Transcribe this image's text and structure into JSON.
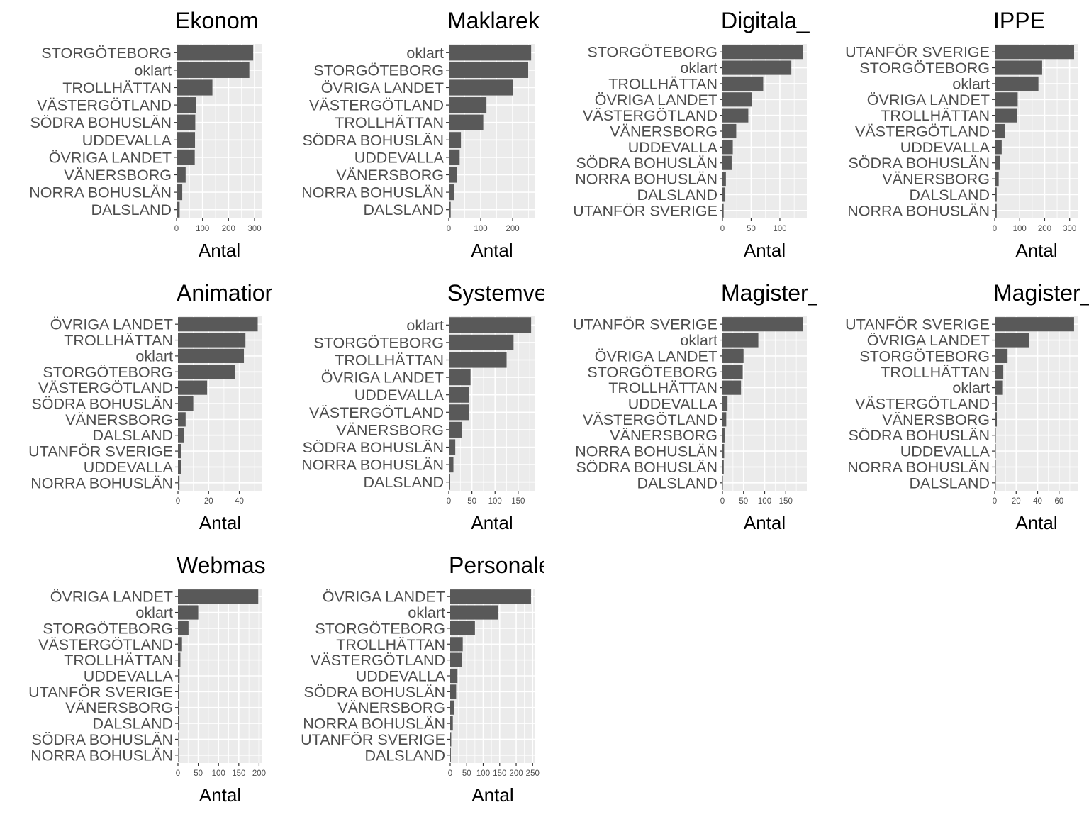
{
  "chart_data": [
    {
      "type": "bar",
      "title": "Ekonom",
      "xlabel": "Antal",
      "categories": [
        "STORGÖTEBORG",
        "oklart",
        "TROLLHÄTTAN",
        "VÄSTERGÖTLAND",
        "SÖDRA BOHUSLÄN",
        "UDDEVALLA",
        "ÖVRIGA LANDET",
        "VÄNERSBORG",
        "NORRA BOHUSLÄN",
        "DALSLAND"
      ],
      "values": [
        295,
        280,
        138,
        76,
        72,
        71,
        70,
        35,
        22,
        12
      ],
      "xlim": [
        0,
        330
      ],
      "ticks": [
        0,
        100,
        200,
        300
      ],
      "tick_labels": [
        "0",
        "100",
        "200",
        "300"
      ]
    },
    {
      "type": "bar",
      "title": "Maklarek",
      "xlabel": "Antal",
      "categories": [
        "oklart",
        "STORGÖTEBORG",
        "ÖVRIGA LANDET",
        "VÄSTERGÖTLAND",
        "TROLLHÄTTAN",
        "SÖDRA BOHUSLÄN",
        "UDDEVALLA",
        "VÄNERSBORG",
        "NORRA BOHUSLÄN",
        "DALSLAND"
      ],
      "values": [
        258,
        249,
        202,
        118,
        108,
        38,
        34,
        26,
        17,
        6
      ],
      "xlim": [
        0,
        271
      ],
      "ticks": [
        0,
        100,
        200
      ],
      "tick_labels": [
        "0",
        "100",
        "200"
      ]
    },
    {
      "type": "bar",
      "title": "Digitala_",
      "xlabel": "Antal",
      "categories": [
        "STORGÖTEBORG",
        "oklart",
        "TROLLHÄTTAN",
        "ÖVRIGA LANDET",
        "VÄSTERGÖTLAND",
        "VÄNERSBORG",
        "UDDEVALLA",
        "SÖDRA BOHUSLÄN",
        "NORRA BOHUSLÄN",
        "DALSLAND",
        "UTANFÖR SVERIGE"
      ],
      "values": [
        140,
        120,
        71,
        51,
        45,
        24,
        18,
        16,
        6,
        5,
        2
      ],
      "xlim": [
        0,
        147
      ],
      "ticks": [
        0,
        50,
        100
      ],
      "tick_labels": [
        "0",
        "50",
        "100"
      ]
    },
    {
      "type": "bar",
      "title": "IPPE",
      "xlabel": "Antal",
      "categories": [
        "UTANFÖR SVERIGE",
        "STORGÖTEBORG",
        "oklart",
        "ÖVRIGA LANDET",
        "TROLLHÄTTAN",
        "VÄSTERGÖTLAND",
        "UDDEVALLA",
        "SÖDRA BOHUSLÄN",
        "VÄNERSBORG",
        "DALSLAND",
        "NORRA BOHUSLÄN"
      ],
      "values": [
        318,
        190,
        175,
        92,
        90,
        42,
        28,
        22,
        16,
        8,
        8
      ],
      "xlim": [
        0,
        335
      ],
      "ticks": [
        0,
        100,
        200,
        300
      ],
      "tick_labels": [
        "0",
        "100",
        "200",
        "300"
      ]
    },
    {
      "type": "bar",
      "title": "Animation",
      "xlabel": "Antal",
      "categories": [
        "ÖVRIGA LANDET",
        "TROLLHÄTTAN",
        "oklart",
        "STORGÖTEBORG",
        "VÄSTERGÖTLAND",
        "SÖDRA BOHUSLÄN",
        "VÄNERSBORG",
        "DALSLAND",
        "UTANFÖR SVERIGE",
        "UDDEVALLA",
        "NORRA BOHUSLÄN"
      ],
      "values": [
        52,
        44,
        43,
        37,
        19,
        10,
        5,
        4,
        2,
        2,
        1
      ],
      "xlim": [
        0,
        55
      ],
      "ticks": [
        0,
        20,
        40
      ],
      "tick_labels": [
        "0",
        "20",
        "40"
      ]
    },
    {
      "type": "bar",
      "title": "Systemve",
      "xlabel": "Antal",
      "categories": [
        "oklart",
        "STORGÖTEBORG",
        "TROLLHÄTTAN",
        "ÖVRIGA LANDET",
        "UDDEVALLA",
        "VÄSTERGÖTLAND",
        "VÄNERSBORG",
        "SÖDRA BOHUSLÄN",
        "NORRA BOHUSLÄN",
        "DALSLAND"
      ],
      "values": [
        178,
        140,
        125,
        47,
        44,
        44,
        29,
        14,
        10,
        3
      ],
      "xlim": [
        0,
        187
      ],
      "ticks": [
        0,
        50,
        100,
        150
      ],
      "tick_labels": [
        "0",
        "50",
        "100",
        "150"
      ]
    },
    {
      "type": "bar",
      "title": "Magister_",
      "xlabel": "Antal",
      "categories": [
        "UTANFÖR SVERIGE",
        "oklart",
        "ÖVRIGA LANDET",
        "STORGÖTEBORG",
        "TROLLHÄTTAN",
        "UDDEVALLA",
        "VÄSTERGÖTLAND",
        "VÄNERSBORG",
        "NORRA BOHUSLÄN",
        "SÖDRA BOHUSLÄN",
        "DALSLAND"
      ],
      "values": [
        190,
        85,
        50,
        48,
        44,
        12,
        9,
        5,
        4,
        3,
        1
      ],
      "xlim": [
        0,
        200
      ],
      "ticks": [
        0,
        50,
        100,
        150
      ],
      "tick_labels": [
        "0",
        "50",
        "100",
        "150"
      ]
    },
    {
      "type": "bar",
      "title": "Magister_",
      "xlabel": "Antal",
      "categories": [
        "UTANFÖR SVERIGE",
        "ÖVRIGA LANDET",
        "STORGÖTEBORG",
        "TROLLHÄTTAN",
        "oklart",
        "VÄSTERGÖTLAND",
        "VÄNERSBORG",
        "SÖDRA BOHUSLÄN",
        "UDDEVALLA",
        "NORRA BOHUSLÄN",
        "DALSLAND"
      ],
      "values": [
        74,
        32,
        12,
        8,
        7,
        2,
        2,
        1,
        1,
        1,
        1
      ],
      "xlim": [
        0,
        78
      ],
      "ticks": [
        0,
        20,
        40,
        60
      ],
      "tick_labels": [
        "0",
        "20",
        "40",
        "60"
      ]
    },
    {
      "type": "bar",
      "title": "Webmas",
      "xlabel": "Antal",
      "categories": [
        "ÖVRIGA LANDET",
        "oklart",
        "STORGÖTEBORG",
        "VÄSTERGÖTLAND",
        "TROLLHÄTTAN",
        "UDDEVALLA",
        "UTANFÖR SVERIGE",
        "VÄNERSBORG",
        "DALSLAND",
        "SÖDRA BOHUSLÄN",
        "NORRA BOHUSLÄN"
      ],
      "values": [
        198,
        50,
        26,
        10,
        6,
        4,
        3,
        3,
        2,
        1,
        1
      ],
      "xlim": [
        0,
        208
      ],
      "ticks": [
        0,
        50,
        100,
        150,
        200
      ],
      "tick_labels": [
        "0",
        "50",
        "100",
        "150",
        "200"
      ]
    },
    {
      "type": "bar",
      "title": "Personalekonomi",
      "xlabel": "Antal",
      "categories": [
        "ÖVRIGA LANDET",
        "oklart",
        "STORGÖTEBORG",
        "TROLLHÄTTAN",
        "VÄSTERGÖTLAND",
        "UDDEVALLA",
        "SÖDRA BOHUSLÄN",
        "VÄNERSBORG",
        "NORRA BOHUSLÄN",
        "UTANFÖR SVERIGE",
        "DALSLAND"
      ],
      "values": [
        245,
        145,
        75,
        38,
        36,
        22,
        18,
        12,
        8,
        3,
        2
      ],
      "xlim": [
        0,
        258
      ],
      "ticks": [
        0,
        50,
        100,
        150,
        200,
        250
      ],
      "tick_labels": [
        "0",
        "50",
        "100",
        "150",
        "200",
        "250"
      ]
    }
  ]
}
